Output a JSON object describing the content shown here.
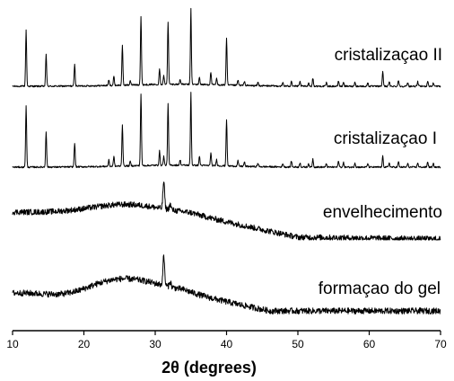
{
  "chart_data": {
    "type": "line",
    "xlabel": "2θ (degrees)",
    "xlim": [
      10,
      70
    ],
    "xticks": [
      10,
      20,
      30,
      40,
      50,
      60,
      70
    ],
    "grid": false,
    "legend": "none",
    "series": [
      {
        "name": "cristalizaçao II",
        "peaks": [
          [
            11.9,
            62
          ],
          [
            14.7,
            36
          ],
          [
            18.7,
            24
          ],
          [
            23.5,
            6
          ],
          [
            24.2,
            10
          ],
          [
            25.4,
            44
          ],
          [
            26.5,
            5
          ],
          [
            28.0,
            76
          ],
          [
            30.6,
            18
          ],
          [
            31.2,
            10
          ],
          [
            31.8,
            70
          ],
          [
            33.5,
            6
          ],
          [
            35.0,
            85
          ],
          [
            36.2,
            8
          ],
          [
            37.8,
            14
          ],
          [
            38.6,
            7
          ],
          [
            40.0,
            52
          ],
          [
            41.6,
            6
          ],
          [
            42.5,
            5
          ],
          [
            44.4,
            4
          ],
          [
            47.9,
            4
          ],
          [
            49.1,
            6
          ],
          [
            50.3,
            5
          ],
          [
            51.5,
            4
          ],
          [
            52.1,
            9
          ],
          [
            54.0,
            4
          ],
          [
            55.7,
            6
          ],
          [
            56.4,
            5
          ],
          [
            58.0,
            5
          ],
          [
            59.8,
            4
          ],
          [
            61.9,
            17
          ],
          [
            62.8,
            5
          ],
          [
            64.1,
            7
          ],
          [
            65.4,
            4
          ],
          [
            66.8,
            5
          ],
          [
            68.2,
            6
          ],
          [
            69.0,
            4
          ]
        ]
      },
      {
        "name": "cristalizaçao I",
        "peaks": [
          [
            11.9,
            68
          ],
          [
            14.7,
            40
          ],
          [
            18.7,
            27
          ],
          [
            23.5,
            7
          ],
          [
            24.2,
            11
          ],
          [
            25.4,
            46
          ],
          [
            26.5,
            5
          ],
          [
            28.0,
            80
          ],
          [
            30.6,
            16
          ],
          [
            31.2,
            10
          ],
          [
            31.8,
            68
          ],
          [
            33.5,
            6
          ],
          [
            35.0,
            82
          ],
          [
            36.2,
            10
          ],
          [
            37.8,
            14
          ],
          [
            38.6,
            7
          ],
          [
            40.0,
            52
          ],
          [
            41.6,
            6
          ],
          [
            42.5,
            5
          ],
          [
            44.4,
            4
          ],
          [
            47.9,
            4
          ],
          [
            49.1,
            7
          ],
          [
            50.3,
            5
          ],
          [
            51.5,
            4
          ],
          [
            52.1,
            9
          ],
          [
            54.0,
            4
          ],
          [
            55.7,
            7
          ],
          [
            56.4,
            5
          ],
          [
            58.0,
            5
          ],
          [
            59.8,
            4
          ],
          [
            61.9,
            12
          ],
          [
            62.8,
            5
          ],
          [
            64.1,
            6
          ],
          [
            65.4,
            4
          ],
          [
            66.8,
            5
          ],
          [
            68.2,
            6
          ],
          [
            69.0,
            4
          ]
        ]
      },
      {
        "name": "envelhecimento",
        "peaks": [
          [
            31.2,
            30
          ],
          [
            32.1,
            6
          ]
        ]
      },
      {
        "name": "formaçao do gel",
        "peaks": [
          [
            31.2,
            32
          ],
          [
            32.1,
            6
          ]
        ]
      }
    ]
  },
  "colors": {
    "trace": "#000000",
    "axis": "#000000",
    "background": "#ffffff"
  }
}
